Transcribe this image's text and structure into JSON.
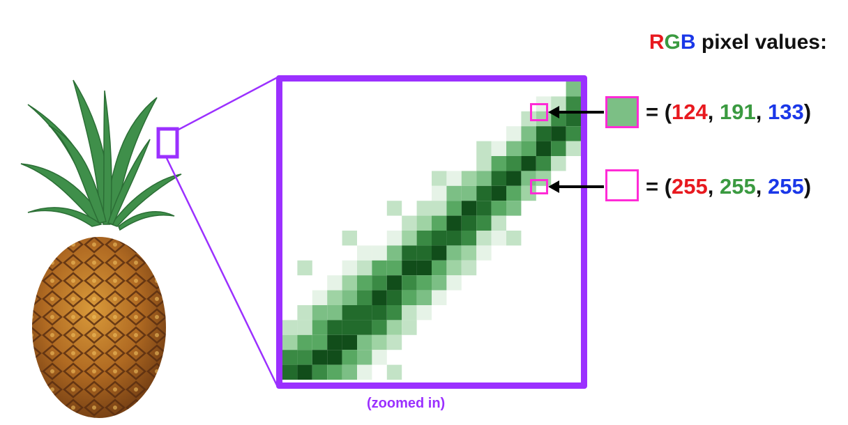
{
  "title": {
    "r": "R",
    "g": "G",
    "b": "B",
    "rest": " pixel values:"
  },
  "caption": "(zoomed in)",
  "pixels": [
    {
      "swatch_color": "#7cbf85",
      "prefix": "= (",
      "r": "124",
      "sep1": ", ",
      "g": "191",
      "sep2": ", ",
      "b": "133",
      "suffix": ")"
    },
    {
      "swatch_color": "#ffffff",
      "prefix": "= (",
      "r": "255",
      "sep1": ", ",
      "g": "255",
      "sep2": ", ",
      "b": "255",
      "suffix": ")"
    }
  ],
  "colors": {
    "zoom_frame": "#9b30ff",
    "highlight": "#ff2bd6",
    "red": "#e8191f",
    "green": "#3a9a40",
    "blue": "#1a37e8"
  }
}
